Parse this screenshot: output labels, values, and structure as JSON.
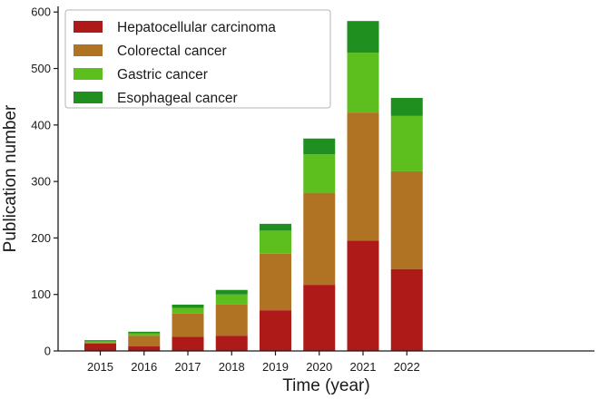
{
  "chart_data": {
    "type": "bar",
    "stacked": true,
    "title": "",
    "xlabel": "Time (year)",
    "ylabel": "Publication number",
    "ylim": [
      0,
      610
    ],
    "yticks": [
      0,
      100,
      200,
      300,
      400,
      500,
      600
    ],
    "categories": [
      "2015",
      "2016",
      "2017",
      "2018",
      "2019",
      "2020",
      "2021",
      "2022"
    ],
    "legend_position": "top-left",
    "series": [
      {
        "name": "Hepatocellular carcinoma",
        "color": "#ad1a17",
        "values": [
          13,
          8,
          25,
          27,
          72,
          117,
          195,
          145
        ]
      },
      {
        "name": "Colorectal cancer",
        "color": "#b07324",
        "values": [
          2,
          19,
          41,
          55,
          100,
          163,
          227,
          173
        ]
      },
      {
        "name": "Gastric cancer",
        "color": "#5cbf1e",
        "values": [
          2,
          4,
          10,
          18,
          41,
          68,
          106,
          98
        ]
      },
      {
        "name": "Esophageal cancer",
        "color": "#1f8f1f",
        "values": [
          2,
          3,
          6,
          8,
          12,
          28,
          56,
          32
        ]
      }
    ]
  }
}
